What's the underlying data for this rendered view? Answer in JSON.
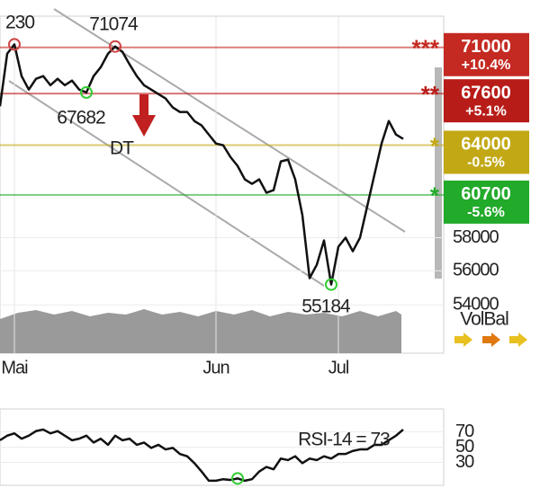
{
  "chart_data": [
    {
      "type": "line",
      "log": true,
      "categories": [
        null,
        null,
        "Mai",
        null,
        null,
        null,
        null,
        null,
        null,
        null,
        null,
        null,
        null,
        null,
        null,
        null,
        null,
        null,
        null,
        null,
        null,
        null,
        null,
        null,
        null,
        null,
        null,
        null,
        null,
        null,
        "Jun",
        null,
        null,
        null,
        null,
        null,
        null,
        null,
        null,
        null,
        null,
        null,
        null,
        null,
        null,
        null,
        null,
        "Jul",
        null,
        null,
        null,
        null,
        null,
        null,
        null,
        null,
        null
      ],
      "values": [
        66700,
        70530,
        71230,
        68870,
        67890,
        68670,
        68870,
        68210,
        68670,
        68210,
        68540,
        67890,
        67682,
        68870,
        69530,
        70530,
        71074,
        70670,
        69730,
        68870,
        68210,
        67890,
        67570,
        67250,
        66610,
        66290,
        66290,
        65660,
        65350,
        64720,
        64110,
        63990,
        63200,
        62600,
        61710,
        61420,
        61710,
        60840,
        61010,
        62900,
        63020,
        61710,
        59400,
        55560,
        56360,
        57830,
        55184,
        57450,
        58000,
        57170,
        58000,
        59970,
        62010,
        64110,
        65660,
        64720,
        64420
      ],
      "color": "#111111",
      "ylim": [
        51300,
        73400
      ],
      "yticks": [
        54000,
        56000,
        58000
      ],
      "levels": [
        {
          "value": 71000,
          "change": "+10.4%",
          "stars": "***",
          "color": "#c42a22"
        },
        {
          "value": 67600,
          "change": "+5.1%",
          "stars": "**",
          "color": "#b81c18"
        },
        {
          "value": 64000,
          "change": "-0.5%",
          "stars": "*",
          "color": "#c2a814"
        },
        {
          "value": 60700,
          "change": "-5.6%",
          "stars": "*",
          "color": "#22aa2a"
        }
      ],
      "annotations": [
        "230",
        "71074",
        "67682",
        "DT",
        "55184",
        "VolBal"
      ]
    },
    {
      "type": "line",
      "values": [
        59,
        65,
        68,
        61,
        65,
        71,
        73,
        68,
        71,
        65,
        59,
        61,
        65,
        56,
        61,
        53,
        65,
        59,
        61,
        53,
        56,
        49,
        53,
        47,
        49,
        41,
        38,
        29,
        18,
        6,
        6,
        8,
        7,
        9,
        6,
        8,
        18,
        24,
        21,
        35,
        33,
        38,
        29,
        35,
        33,
        38,
        35,
        41,
        41,
        45,
        47,
        47,
        53,
        53,
        59,
        65,
        73
      ],
      "color": "#111111",
      "ylim": [
        0,
        100
      ],
      "yticks": [
        30,
        50,
        70
      ],
      "annotations": [
        "RSI-14 = 73"
      ]
    }
  ]
}
